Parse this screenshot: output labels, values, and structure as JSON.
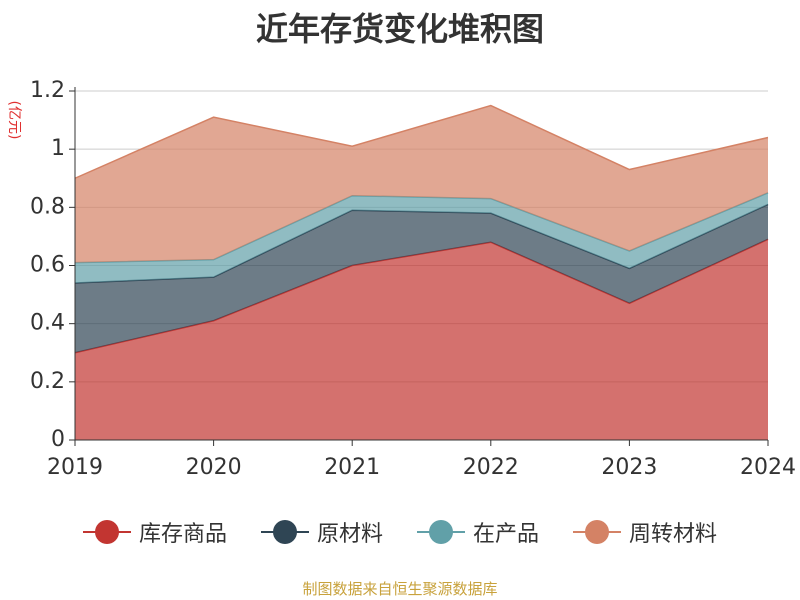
{
  "chart_data": {
    "type": "area",
    "stacked": true,
    "title": "近年存货变化堆积图",
    "ylabel": "(亿元)",
    "xlabel": "",
    "x": [
      "2019",
      "2020",
      "2021",
      "2022",
      "2023",
      "2024"
    ],
    "yticks": [
      "0",
      "0.2",
      "0.4",
      "0.6",
      "0.8",
      "1",
      "1.2"
    ],
    "ylim": [
      0,
      1.2
    ],
    "grid": true,
    "legend_position": "bottom",
    "series": [
      {
        "name": "库存商品",
        "color": "#c23531",
        "values": [
          0.3,
          0.41,
          0.6,
          0.68,
          0.47,
          0.69
        ]
      },
      {
        "name": "原材料",
        "color": "#2f4554",
        "values": [
          0.24,
          0.15,
          0.19,
          0.1,
          0.12,
          0.12
        ]
      },
      {
        "name": "在产品",
        "color": "#61a0a8",
        "values": [
          0.07,
          0.06,
          0.05,
          0.05,
          0.06,
          0.04
        ]
      },
      {
        "name": "周转材料",
        "color": "#d48265",
        "values": [
          0.29,
          0.49,
          0.17,
          0.32,
          0.28,
          0.19
        ]
      }
    ]
  },
  "source": "制图数据来自恒生聚源数据库"
}
